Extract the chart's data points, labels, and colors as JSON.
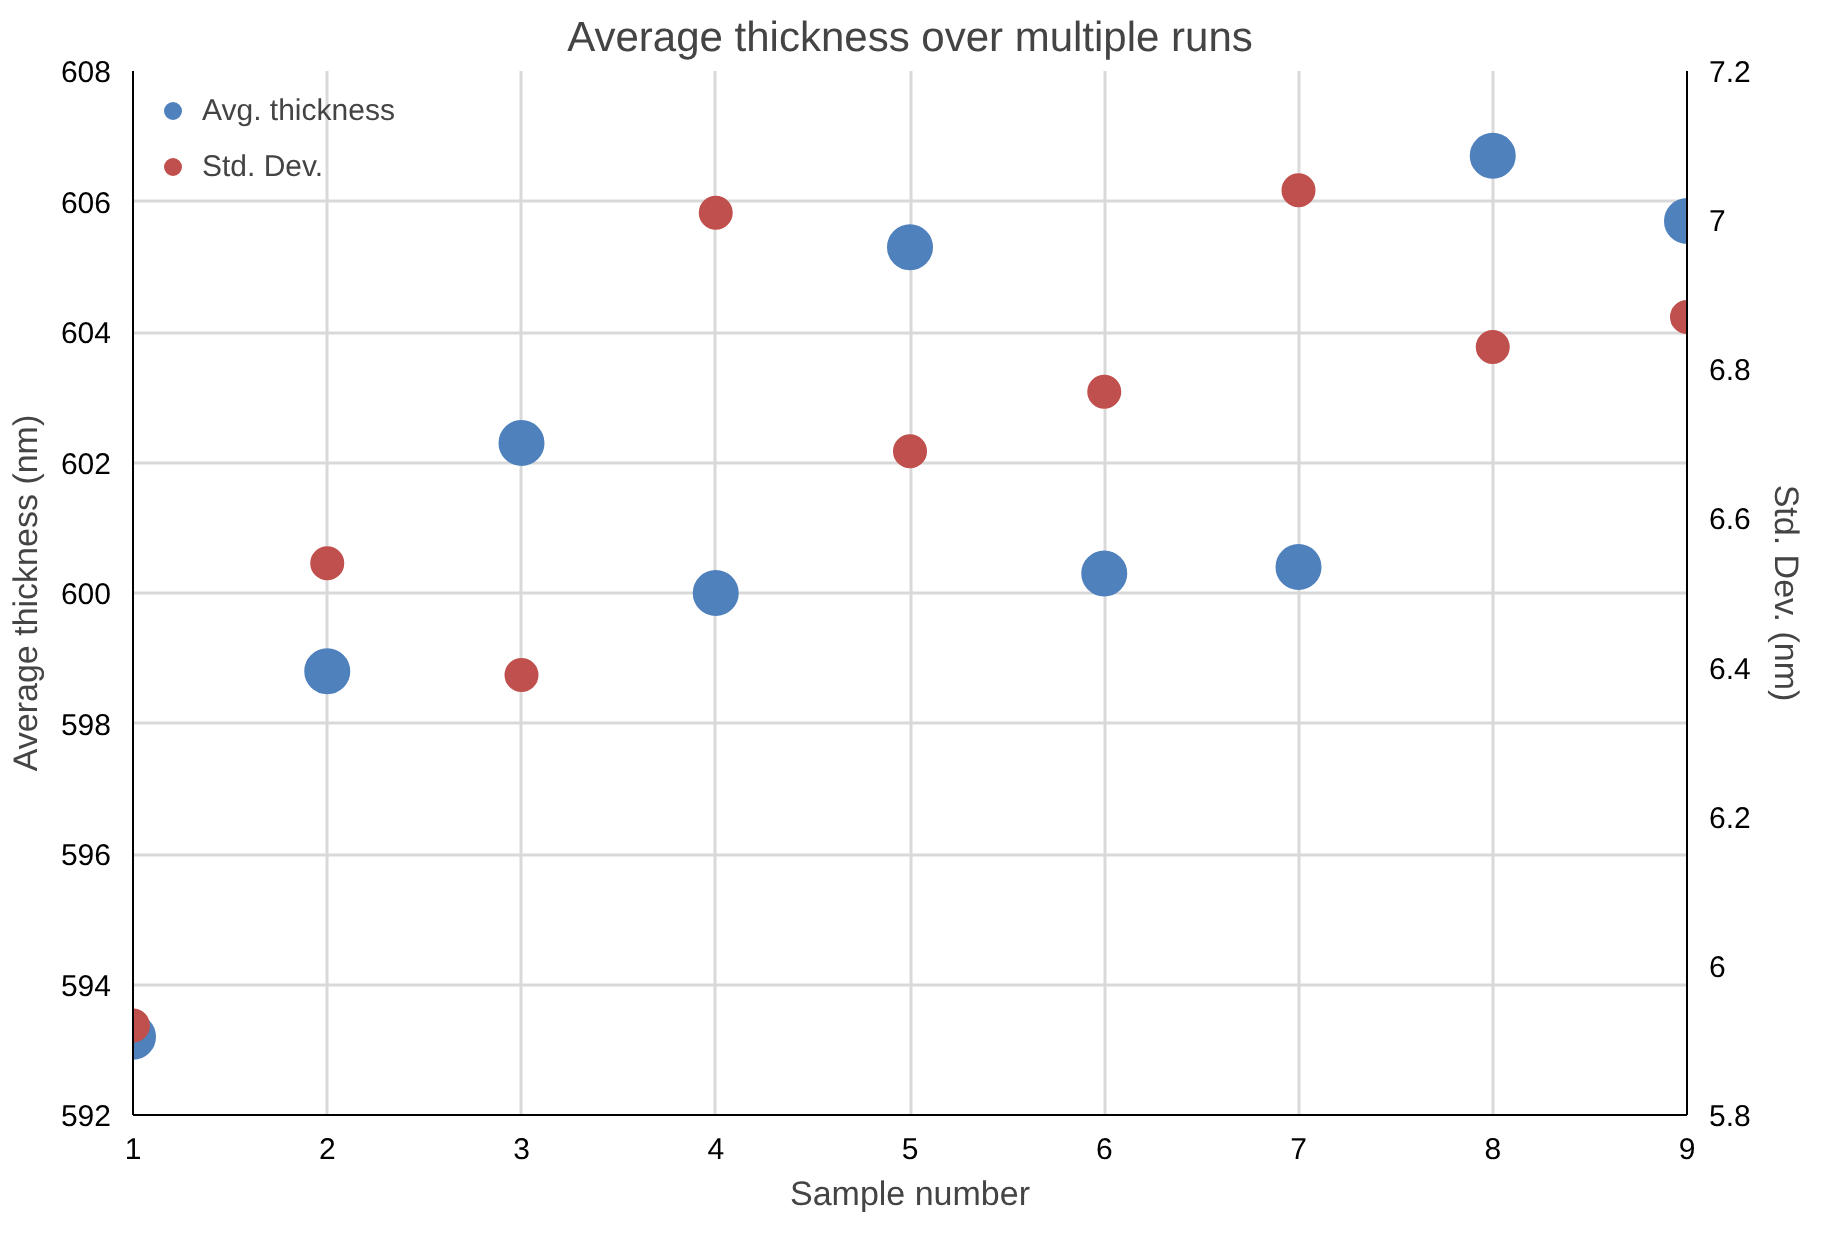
{
  "chart_data": {
    "type": "scatter",
    "title": "Average thickness over multiple runs",
    "xlabel": "Sample number",
    "ylabel": "Average thickness (nm)",
    "y2label": "Std. Dev. (nm)",
    "x": [
      1,
      2,
      3,
      4,
      5,
      6,
      7,
      8,
      9
    ],
    "series": [
      {
        "name": "Avg. thickness",
        "color": "#4f81bd",
        "values": [
          593.2,
          598.8,
          602.3,
          600.0,
          605.3,
          600.3,
          600.4,
          606.7,
          605.7
        ]
      },
      {
        "name": "Std. Dev.",
        "color": "#c0504d",
        "axis": "y2",
        "values": [
          5.92,
          6.54,
          6.39,
          7.01,
          6.69,
          6.77,
          7.04,
          6.83,
          6.87
        ]
      }
    ],
    "xlim": [
      1,
      9
    ],
    "xticks": [
      1,
      2,
      3,
      4,
      5,
      6,
      7,
      8,
      9
    ],
    "ylim": [
      592,
      608
    ],
    "yticks": [
      592,
      594,
      596,
      598,
      600,
      602,
      604,
      606,
      608
    ],
    "y2lim": [
      5.8,
      7.2
    ],
    "y2ticks": [
      {
        "value": 5.8,
        "label": "5.8"
      },
      {
        "value": 6,
        "label": "6"
      },
      {
        "value": 6.2,
        "label": "6.2"
      },
      {
        "value": 6.4,
        "label": "6.4"
      },
      {
        "value": 6.6,
        "label": "6.6"
      },
      {
        "value": 6.8,
        "label": "6.8"
      },
      {
        "value": 7,
        "label": "7"
      },
      {
        "value": 7.2,
        "label": "7.2"
      }
    ],
    "grid": true,
    "legend": "top left",
    "marker": "circle"
  }
}
